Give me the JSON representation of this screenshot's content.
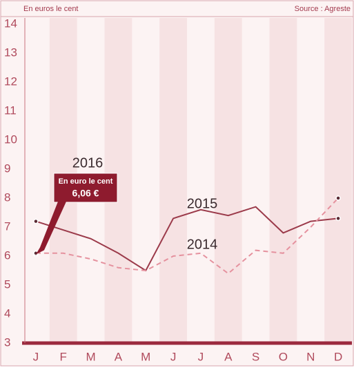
{
  "chart_data": {
    "type": "line",
    "subtitle": "En euros le cent",
    "source": "Source : Agreste",
    "categories": [
      "J",
      "F",
      "M",
      "A",
      "M",
      "J",
      "J",
      "A",
      "S",
      "O",
      "N",
      "D"
    ],
    "series": [
      {
        "name": "2016",
        "color": "#8e1b2e",
        "values": [
          6.06,
          null,
          null,
          null,
          null,
          null,
          null,
          null,
          null,
          null,
          null,
          null
        ]
      },
      {
        "name": "2015",
        "color": "#9b3a4a",
        "values": [
          7.2,
          6.9,
          6.6,
          6.1,
          5.5,
          7.3,
          7.6,
          7.4,
          7.7,
          6.8,
          7.2,
          7.3
        ]
      },
      {
        "name": "2014",
        "color": "#e5919e",
        "dashed": true,
        "values": [
          6.1,
          6.1,
          5.9,
          5.6,
          5.5,
          6.0,
          6.1,
          5.4,
          6.2,
          6.1,
          7.0,
          8.0
        ]
      }
    ],
    "annotation": {
      "title": "En euro le cent",
      "label": "6,06 €",
      "series": 0,
      "index": 0
    },
    "ylim": [
      3,
      14
    ],
    "yticks": [
      3,
      4,
      5,
      6,
      7,
      8,
      9,
      10,
      11,
      12,
      13,
      14
    ]
  }
}
